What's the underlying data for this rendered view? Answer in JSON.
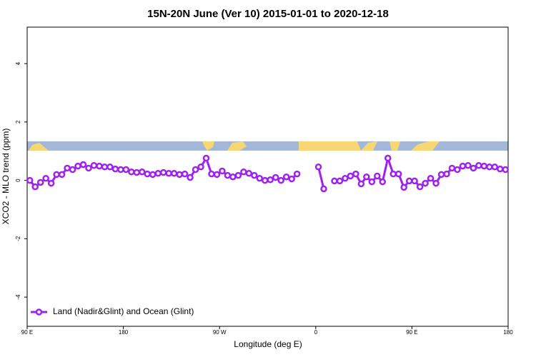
{
  "chart_data": {
    "type": "line",
    "title": "15N-20N June (Ver 10)   2015-01-01 to 2020-12-18",
    "xlabel": "Longitude (deg E)",
    "ylabel": "XCO2 - MLO trend (ppm)",
    "legend": "bottom-left",
    "xlim": [
      90,
      540
    ],
    "ylim": [
      -5,
      5.25
    ],
    "xticks": [
      {
        "value": 90,
        "label": "90 E"
      },
      180,
      {
        "value": 270,
        "label": "90 W"
      },
      {
        "value": 360,
        "label": "0"
      },
      {
        "value": 450,
        "label": "90 E"
      },
      {
        "value": 540,
        "label": "180"
      }
    ],
    "yticks": [
      -4,
      -2,
      0,
      2,
      4
    ],
    "x": [
      92.5,
      97.5,
      102.5,
      107.5,
      112.5,
      117.5,
      122.5,
      127.5,
      132.5,
      137.5,
      142.5,
      147.5,
      152.5,
      157.5,
      162.5,
      167.5,
      172.5,
      177.5,
      182.5,
      187.5,
      192.5,
      197.5,
      202.5,
      207.5,
      212.5,
      217.5,
      222.5,
      227.5,
      232.5,
      237.5,
      242.5,
      247.5,
      252.5,
      257.5,
      262.5,
      267.5,
      272.5,
      277.5,
      282.5,
      287.5,
      292.5,
      297.5,
      302.5,
      307.5,
      312.5,
      317.5,
      322.5,
      327.5,
      332.5,
      337.5,
      342.5,
      347.5,
      352.5,
      357.5,
      362.5,
      367.5,
      372.5,
      377.5,
      382.5,
      387.5,
      392.5,
      397.5,
      402.5,
      407.5,
      412.5,
      417.5,
      422.5,
      427.5,
      432.5,
      437.5,
      442.5,
      447.5,
      452.5,
      457.5,
      462.5,
      467.5,
      472.5,
      477.5,
      482.5,
      487.5,
      492.5,
      497.5,
      502.5,
      507.5,
      512.5,
      517.5,
      522.5,
      527.5,
      532.5,
      537.5
    ],
    "series": [
      {
        "name": "Land (Nadir&Glint) and Ocean (Glint)",
        "color": "#a020f0",
        "values": [
          0.0,
          -0.22,
          -0.07,
          0.07,
          -0.1,
          0.2,
          0.2,
          0.42,
          0.37,
          0.49,
          0.54,
          0.42,
          0.51,
          0.49,
          0.46,
          0.46,
          0.39,
          0.37,
          0.37,
          0.29,
          0.27,
          0.29,
          0.22,
          0.2,
          0.24,
          0.27,
          0.24,
          0.24,
          0.2,
          0.22,
          0.1,
          0.37,
          0.46,
          0.76,
          0.22,
          0.2,
          0.32,
          0.17,
          0.12,
          0.17,
          0.29,
          0.24,
          0.17,
          0.07,
          0.0,
          0.02,
          0.1,
          0.0,
          0.12,
          0.05,
          0.22,
          null,
          null,
          null,
          0.46,
          -0.29,
          null,
          -0.02,
          -0.02,
          0.07,
          0.15,
          0.22,
          -0.12,
          0.12,
          -0.05,
          0.15,
          -0.05,
          0.76,
          0.22,
          0.22,
          -0.24,
          -0.02,
          -0.02,
          -0.22,
          -0.1,
          0.07,
          -0.1,
          0.2,
          0.22,
          0.42,
          0.37,
          0.49,
          0.51,
          0.42,
          0.51,
          0.49,
          0.46,
          0.46,
          0.39,
          0.37
        ]
      }
    ]
  }
}
